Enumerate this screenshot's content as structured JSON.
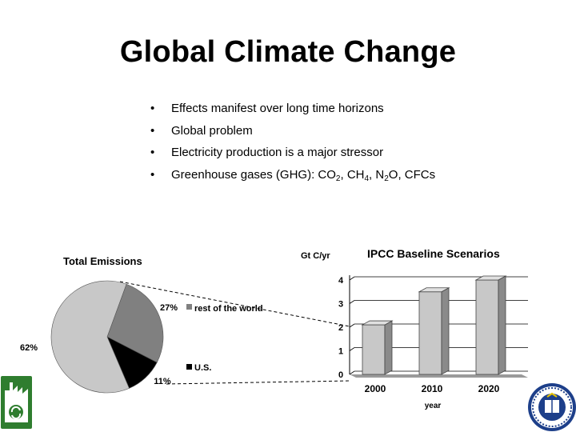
{
  "slide": {
    "title": "Global Climate Change",
    "bullets": [
      {
        "marker": "•",
        "text": "Effects manifest over long time horizons"
      },
      {
        "marker": "•",
        "text": "Global problem"
      },
      {
        "marker": "•",
        "text": "Electricity production is a major stressor"
      },
      {
        "marker": "•",
        "prefix": "Greenhouse gases (GHG): CO",
        "sub1": "2",
        "mid1": ", CH",
        "sub2": "4",
        "mid2": ", N",
        "sub3": "2",
        "suffix": "O, CFCs"
      }
    ]
  },
  "logos": {
    "left": "recycling-building-logo",
    "right": "university-seal"
  },
  "chart_data": [
    {
      "type": "pie",
      "title": "Total Emissions",
      "slices": [
        {
          "label": "rest of the world",
          "value": 27,
          "display": "27%",
          "color": "#808080"
        },
        {
          "label": "U.S.",
          "value": 11,
          "display": "11%",
          "color": "#000000"
        },
        {
          "label": "",
          "value": 62,
          "display": "62%",
          "color": "#c8c8c8"
        }
      ],
      "legend": [
        "rest of the world",
        "U.S."
      ]
    },
    {
      "type": "bar",
      "title": "IPCC Baseline Scenarios",
      "ylabel": "Gt C/yr",
      "xlabel": "year",
      "categories": [
        "2000",
        "2010",
        "2020"
      ],
      "values": [
        2.1,
        3.5,
        4.0
      ],
      "ylim": [
        0,
        4
      ],
      "yticks": [
        "0",
        "1",
        "2",
        "3",
        "4"
      ],
      "bar_color": "#c8c8c8"
    }
  ]
}
